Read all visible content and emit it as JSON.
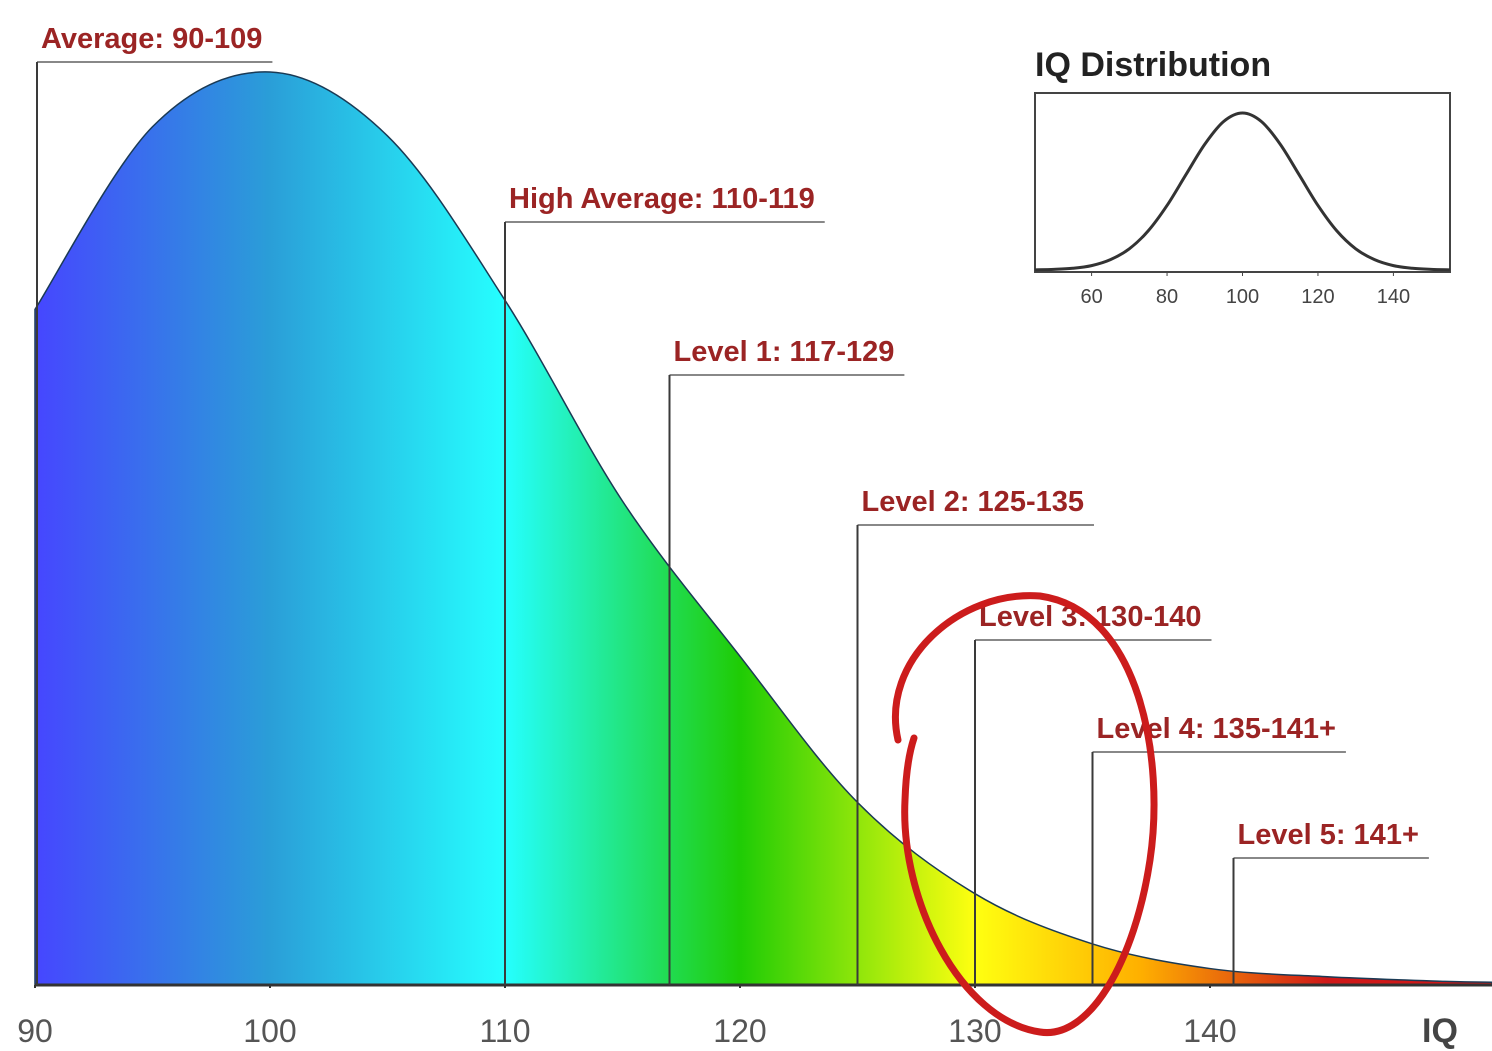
{
  "chart_data": [
    {
      "type": "area",
      "xlabel": "IQ",
      "x": [
        90,
        95,
        100,
        105,
        110,
        115,
        120,
        125,
        130,
        135,
        140,
        145,
        150,
        152
      ],
      "values": [
        74,
        94,
        100,
        93,
        75,
        53,
        36,
        20,
        10,
        4.5,
        1.8,
        0.9,
        0.4,
        0.3
      ],
      "xlim": [
        90,
        152
      ],
      "ylim": [
        0,
        100
      ],
      "xticks": [
        90,
        100,
        110,
        120,
        130,
        140
      ],
      "gradient": [
        {
          "x": 90,
          "color": "#4646ff"
        },
        {
          "x": 100,
          "color": "#2a9ed8"
        },
        {
          "x": 110,
          "color": "#25ffff"
        },
        {
          "x": 120,
          "color": "#1fcc05"
        },
        {
          "x": 130,
          "color": "#ffff10"
        },
        {
          "x": 137,
          "color": "#ffb000"
        },
        {
          "x": 145,
          "color": "#d01818"
        }
      ],
      "annotations": [
        {
          "label": "Average: 90-109",
          "x": 90
        },
        {
          "label": "High Average: 110-119",
          "x": 110
        },
        {
          "label": "Level 1: 117-129",
          "x": 117
        },
        {
          "label": "Level 2: 125-135",
          "x": 125
        },
        {
          "label": "Level 3: 130-140",
          "x": 130
        },
        {
          "label": "Level 4: 135-141+",
          "x": 135
        },
        {
          "label": "Level 5: 141+",
          "x": 141
        }
      ]
    },
    {
      "type": "line",
      "title": "IQ Distribution",
      "x": [
        45,
        50,
        55,
        60,
        65,
        70,
        75,
        80,
        85,
        90,
        95,
        100,
        105,
        110,
        115,
        120,
        125,
        130,
        135,
        140,
        145,
        150,
        155
      ],
      "values": [
        0.1,
        0.4,
        1.1,
        2.8,
        6.6,
        13.5,
        24.9,
        41.1,
        60.7,
        80.1,
        94.6,
        100,
        94.6,
        80.1,
        60.7,
        41.1,
        24.9,
        13.5,
        6.6,
        2.8,
        1.1,
        0.4,
        0.1
      ],
      "xlim": [
        45,
        155
      ],
      "ylim": [
        0,
        100
      ],
      "xticks": [
        60,
        80,
        100,
        120,
        140
      ],
      "color": "#333333"
    }
  ]
}
